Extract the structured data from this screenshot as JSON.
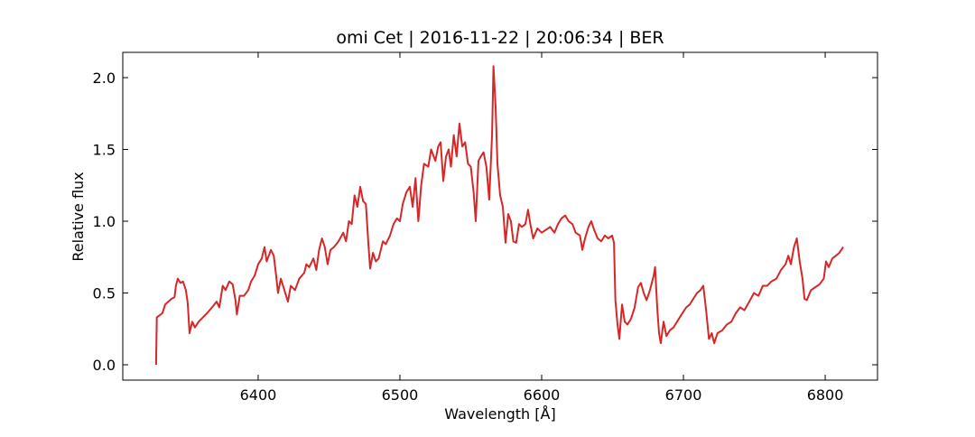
{
  "chart_data": {
    "type": "line",
    "title": "omi Cet | 2016-11-22 | 20:06:34 | BER",
    "x_label": "Wavelength [Å]",
    "y_label": "Relative flux",
    "xlim": [
      6304.5,
      6836.9
    ],
    "ylim": [
      -0.107,
      2.176
    ],
    "xticks": [
      6400,
      6500,
      6600,
      6700,
      6800
    ],
    "yticks": [
      {
        "value": 0,
        "label": "0.0"
      },
      0.5,
      {
        "value": 1,
        "label": "1.0"
      },
      1.5,
      {
        "value": 2,
        "label": "2.0"
      }
    ],
    "grid": false,
    "x": [
      6328,
      6328.5,
      6332.5,
      6334.4,
      6338.9,
      6341,
      6342,
      6343.3,
      6345.2,
      6347,
      6349,
      6350.3,
      6351.6,
      6353.5,
      6355.4,
      6358,
      6361,
      6364,
      6367.5,
      6370.7,
      6372.6,
      6375,
      6377,
      6379.6,
      6382,
      6384,
      6385,
      6387,
      6390,
      6393,
      6395,
      6397.5,
      6400,
      6402.5,
      6404.5,
      6406,
      6409,
      6411,
      6412.7,
      6414,
      6416,
      6418.5,
      6421,
      6423,
      6426,
      6429,
      6432.5,
      6434,
      6436,
      6439,
      6441,
      6443,
      6445,
      6447,
      6449,
      6451,
      6453.5,
      6456.7,
      6460,
      6462,
      6464,
      6466,
      6468,
      6470,
      6472,
      6474,
      6476,
      6477.7,
      6479,
      6481,
      6483,
      6485,
      6488,
      6490,
      6493,
      6495.5,
      6498,
      6500,
      6502,
      6504.5,
      6507,
      6509,
      6511,
      6513,
      6515,
      6517,
      6520,
      6522,
      6525,
      6527,
      6528.7,
      6530.6,
      6532.5,
      6534.4,
      6536,
      6538,
      6540,
      6542,
      6544,
      6546,
      6548,
      6550,
      6552,
      6553.5,
      6555.4,
      6557,
      6559,
      6561,
      6563,
      6565,
      6566,
      6567.5,
      6568.8,
      6570.7,
      6572.6,
      6574.5,
      6576.4,
      6578.3,
      6580,
      6582,
      6584,
      6586,
      6588.5,
      6590.4,
      6592,
      6594,
      6597,
      6600,
      6603,
      6606,
      6609,
      6611.5,
      6614,
      6616.6,
      6619,
      6621.7,
      6624,
      6627,
      6628.7,
      6630.6,
      6633,
      6635,
      6637,
      6639.5,
      6642,
      6644.6,
      6647,
      6649.7,
      6651,
      6652,
      6653.5,
      6654.8,
      6656.7,
      6658.6,
      6660.5,
      6663,
      6665.6,
      6668,
      6670,
      6672,
      6674,
      6676.4,
      6679,
      6680,
      6681.5,
      6682.8,
      6684,
      6686,
      6688,
      6690.4,
      6693,
      6695.5,
      6698.7,
      6702,
      6704.5,
      6707,
      6709.6,
      6712,
      6714,
      6716,
      6718,
      6720,
      6721.7,
      6724,
      6727.4,
      6730.6,
      6733.8,
      6737,
      6740,
      6743,
      6746.5,
      6749.7,
      6752.9,
      6756,
      6759,
      6762,
      6765.6,
      6768.8,
      6772,
      6774,
      6775.8,
      6778,
      6780,
      6782,
      6784,
      6785.4,
      6787,
      6790,
      6793,
      6796,
      6799,
      6800.6,
      6802.5,
      6805,
      6807.6,
      6810,
      6812.7
    ],
    "series": [
      {
        "color": "#d62728",
        "values": [
          0.0,
          0.33,
          0.36,
          0.42,
          0.46,
          0.47,
          0.55,
          0.6,
          0.57,
          0.58,
          0.52,
          0.43,
          0.22,
          0.3,
          0.26,
          0.3,
          0.33,
          0.36,
          0.4,
          0.44,
          0.4,
          0.55,
          0.52,
          0.58,
          0.56,
          0.45,
          0.35,
          0.48,
          0.48,
          0.52,
          0.58,
          0.62,
          0.7,
          0.74,
          0.82,
          0.72,
          0.8,
          0.76,
          0.62,
          0.5,
          0.6,
          0.52,
          0.44,
          0.55,
          0.52,
          0.6,
          0.64,
          0.7,
          0.68,
          0.74,
          0.66,
          0.8,
          0.88,
          0.82,
          0.7,
          0.8,
          0.82,
          0.86,
          0.92,
          0.86,
          1.0,
          0.98,
          1.18,
          1.1,
          1.24,
          1.14,
          1.12,
          0.85,
          0.67,
          0.78,
          0.72,
          0.74,
          0.86,
          0.84,
          0.9,
          0.98,
          1.02,
          1.0,
          1.12,
          1.2,
          1.24,
          1.1,
          1.3,
          1.0,
          1.25,
          1.4,
          1.38,
          1.5,
          1.42,
          1.52,
          1.55,
          1.28,
          1.45,
          1.5,
          1.38,
          1.6,
          1.45,
          1.68,
          1.52,
          1.55,
          1.4,
          1.38,
          1.2,
          1.0,
          1.42,
          1.45,
          1.48,
          1.38,
          1.15,
          1.6,
          2.08,
          1.8,
          1.4,
          1.18,
          1.1,
          0.85,
          1.05,
          1.0,
          0.86,
          0.85,
          0.98,
          0.96,
          0.98,
          1.08,
          0.98,
          0.88,
          0.95,
          0.92,
          0.94,
          0.96,
          0.92,
          0.98,
          1.02,
          1.04,
          1.0,
          0.98,
          0.92,
          0.9,
          0.8,
          0.88,
          0.96,
          1.0,
          0.94,
          0.88,
          0.86,
          0.9,
          0.88,
          0.9,
          0.85,
          0.45,
          0.28,
          0.18,
          0.42,
          0.3,
          0.28,
          0.32,
          0.4,
          0.54,
          0.57,
          0.5,
          0.45,
          0.52,
          0.62,
          0.68,
          0.4,
          0.22,
          0.15,
          0.3,
          0.2,
          0.24,
          0.26,
          0.3,
          0.35,
          0.4,
          0.42,
          0.46,
          0.5,
          0.52,
          0.55,
          0.38,
          0.18,
          0.22,
          0.15,
          0.22,
          0.24,
          0.28,
          0.3,
          0.36,
          0.4,
          0.38,
          0.44,
          0.5,
          0.48,
          0.55,
          0.55,
          0.58,
          0.6,
          0.66,
          0.7,
          0.76,
          0.7,
          0.82,
          0.88,
          0.72,
          0.6,
          0.46,
          0.45,
          0.52,
          0.54,
          0.56,
          0.6,
          0.72,
          0.68,
          0.74,
          0.76,
          0.78,
          0.82
        ]
      }
    ]
  }
}
